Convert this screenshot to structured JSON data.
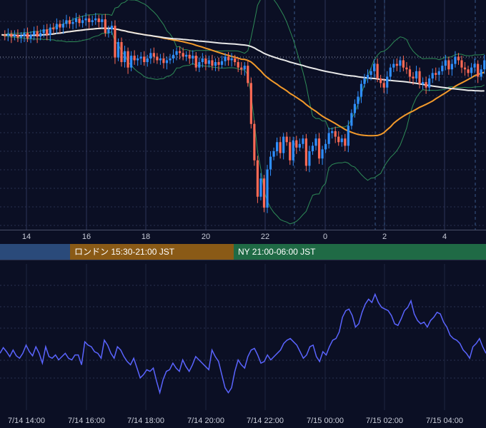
{
  "colors": {
    "background": "#0b0f24",
    "grid": "#2a3150",
    "candle_up": "#2f8fff",
    "candle_down": "#ff6a55",
    "ma_short": "#f39a2b",
    "ma_long": "#e8e8e8",
    "bollinger": "#2e8b57",
    "indicator": "#5a64ff",
    "session_tokyo": "#2a4a7a",
    "session_london": "#8a5a16",
    "session_ny": "#1f6a45"
  },
  "price_axis_labels": [
    "14",
    "16",
    "18",
    "20",
    "22",
    "0",
    "2",
    "4"
  ],
  "sessions": [
    {
      "label": ""
    },
    {
      "label": "ロンドン 15:30-21:00 JST"
    },
    {
      "label": "NY 21:00-06:00 JST"
    }
  ],
  "indicator_axis_labels": [
    "7/14 14:00",
    "7/14 16:00",
    "7/14 18:00",
    "7/14 20:00",
    "7/14 22:00",
    "7/15 00:00",
    "7/15 02:00",
    "7/15 04:00"
  ],
  "chart_data": {
    "type": "candlestick",
    "series": [
      {
        "values": [
          92,
          93,
          91,
          94,
          92,
          95,
          93,
          90,
          96,
          92,
          88,
          94,
          90,
          86,
          92,
          84,
          86,
          80,
          84,
          80,
          76,
          80,
          78,
          74,
          79,
          76,
          74,
          78,
          76,
          74,
          78,
          75,
          90,
          86,
          82,
          117,
          100,
          122,
          110,
          128,
          115,
          120,
          118,
          116,
          122,
          118,
          112,
          116,
          120,
          118,
          123,
          120,
          118,
          114,
          110,
          112,
          116,
          114,
          118,
          115,
          128,
          122,
          118,
          124,
          120,
          126,
          122,
          125,
          121,
          116,
          120,
          118,
          122,
          128,
          130,
          126,
          145,
          190,
          230,
          270,
          250,
          282,
          240,
          226,
          220,
          210,
          222,
          204,
          210,
          230,
          208,
          216,
          212,
          206,
          236,
          220,
          214,
          206,
          228,
          218,
          212,
          200,
          198,
          204,
          210,
          206,
          214,
          192,
          178,
          168,
          160,
          146,
          140,
          136,
          132,
          124,
          140,
          145,
          150,
          138,
          128,
          124,
          126,
          120,
          128,
          130,
          138,
          140,
          132,
          146,
          144,
          150,
          140,
          134,
          136,
          132,
          126,
          120,
          130,
          124,
          116,
          120,
          128,
          130,
          134,
          128,
          124,
          138,
          130,
          120
        ]
      },
      {
        "values": [
          -22,
          -15,
          -20,
          -26,
          -18,
          -25,
          -28,
          -22,
          -12,
          -20,
          -25,
          -14,
          -22,
          -34,
          -14,
          -26,
          -28,
          -24,
          -30,
          -26,
          -22,
          -28,
          -30,
          -24,
          -24,
          -36,
          -8,
          -12,
          -14,
          -20,
          -22,
          -28,
          -6,
          -12,
          -22,
          -28,
          -14,
          -18,
          -26,
          -32,
          -36,
          -28,
          -40,
          -52,
          -48,
          -42,
          -44,
          -40,
          -56,
          -70,
          -54,
          -44,
          -42,
          -34,
          -40,
          -44,
          -30,
          -38,
          -44,
          -36,
          -26,
          -30,
          -34,
          -38,
          -42,
          -18,
          -26,
          -32,
          -48,
          -64,
          -70,
          -64,
          -44,
          -30,
          -36,
          -40,
          -26,
          -18,
          -16,
          -24,
          -34,
          -32,
          -24,
          -30,
          -26,
          -22,
          -18,
          -10,
          -6,
          -4,
          -8,
          -12,
          -20,
          -28,
          -24,
          -14,
          -12,
          -26,
          -32,
          -20,
          -24,
          -14,
          -6,
          -4,
          4,
          22,
          30,
          32,
          24,
          10,
          14,
          28,
          38,
          44,
          40,
          50,
          40,
          34,
          32,
          30,
          24,
          14,
          12,
          20,
          30,
          34,
          42,
          26,
          18,
          14,
          16,
          10,
          18,
          22,
          28,
          26,
          16,
          10,
          0,
          -4,
          -6,
          -10,
          -18,
          -22,
          -28,
          -14,
          -10,
          -4,
          -14,
          -22
        ]
      }
    ]
  }
}
